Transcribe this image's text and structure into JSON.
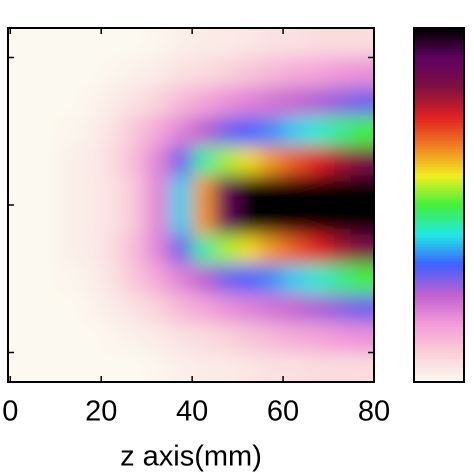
{
  "chart_data": {
    "type": "heatmap",
    "xlabel": "z axis(mm)",
    "xlim": [
      -0.5,
      80
    ],
    "xticks": [
      0,
      20,
      40,
      60,
      80
    ],
    "ylim": [
      -12,
      12
    ],
    "yticks": [
      -10,
      0,
      10
    ],
    "x": [
      2.5,
      7.5,
      12.5,
      17.5,
      22.5,
      27.5,
      32.5,
      37.5,
      42.5,
      47.5,
      52.5,
      57.5,
      62.5,
      67.5,
      72.5,
      77.5
    ],
    "y": [
      11,
      9,
      7,
      5,
      3,
      1,
      -1,
      -3,
      -5,
      -7,
      -9,
      -11
    ],
    "zlim": [
      0,
      1
    ],
    "colormap": [
      "#fcfaf0",
      "#f9d0d8",
      "#f39ad8",
      "#c060d0",
      "#4060ff",
      "#20e8e8",
      "#40f040",
      "#f0f020",
      "#f08020",
      "#e02020",
      "#801040",
      "#600060",
      "#000000"
    ],
    "values": [
      [
        0,
        0,
        0,
        0,
        0,
        0,
        0.01,
        0.02,
        0.03,
        0.03,
        0.04,
        0.05,
        0.05,
        0.06,
        0.06,
        0.06
      ],
      [
        0,
        0,
        0,
        0,
        0.01,
        0.02,
        0.03,
        0.05,
        0.06,
        0.08,
        0.1,
        0.12,
        0.14,
        0.15,
        0.17,
        0.18
      ],
      [
        0,
        0,
        0,
        0.01,
        0.03,
        0.05,
        0.08,
        0.12,
        0.15,
        0.18,
        0.2,
        0.22,
        0.24,
        0.26,
        0.28,
        0.3
      ],
      [
        0,
        0,
        0.01,
        0.02,
        0.05,
        0.1,
        0.15,
        0.2,
        0.25,
        0.3,
        0.33,
        0.36,
        0.4,
        0.43,
        0.46,
        0.5
      ],
      [
        0,
        0,
        0.02,
        0.03,
        0.06,
        0.12,
        0.2,
        0.3,
        0.45,
        0.55,
        0.6,
        0.65,
        0.7,
        0.75,
        0.8,
        0.85
      ],
      [
        0,
        0,
        0.02,
        0.03,
        0.05,
        0.1,
        0.2,
        0.4,
        0.65,
        0.9,
        1,
        1,
        1,
        1,
        1,
        1
      ],
      [
        0,
        0,
        0.02,
        0.03,
        0.05,
        0.1,
        0.2,
        0.4,
        0.65,
        0.9,
        1,
        1,
        1,
        1,
        1,
        1
      ],
      [
        0,
        0,
        0.02,
        0.03,
        0.06,
        0.12,
        0.2,
        0.3,
        0.45,
        0.55,
        0.6,
        0.65,
        0.7,
        0.75,
        0.8,
        0.85
      ],
      [
        0,
        0,
        0.01,
        0.02,
        0.05,
        0.1,
        0.15,
        0.2,
        0.25,
        0.3,
        0.33,
        0.36,
        0.4,
        0.43,
        0.46,
        0.5
      ],
      [
        0,
        0,
        0,
        0.01,
        0.03,
        0.05,
        0.08,
        0.12,
        0.15,
        0.18,
        0.2,
        0.22,
        0.24,
        0.26,
        0.28,
        0.3
      ],
      [
        0,
        0,
        0,
        0,
        0.01,
        0.02,
        0.03,
        0.05,
        0.06,
        0.08,
        0.1,
        0.12,
        0.14,
        0.15,
        0.17,
        0.18
      ],
      [
        0,
        0,
        0,
        0,
        0,
        0,
        0.01,
        0.02,
        0.03,
        0.03,
        0.04,
        0.05,
        0.05,
        0.06,
        0.06,
        0.06
      ]
    ]
  }
}
